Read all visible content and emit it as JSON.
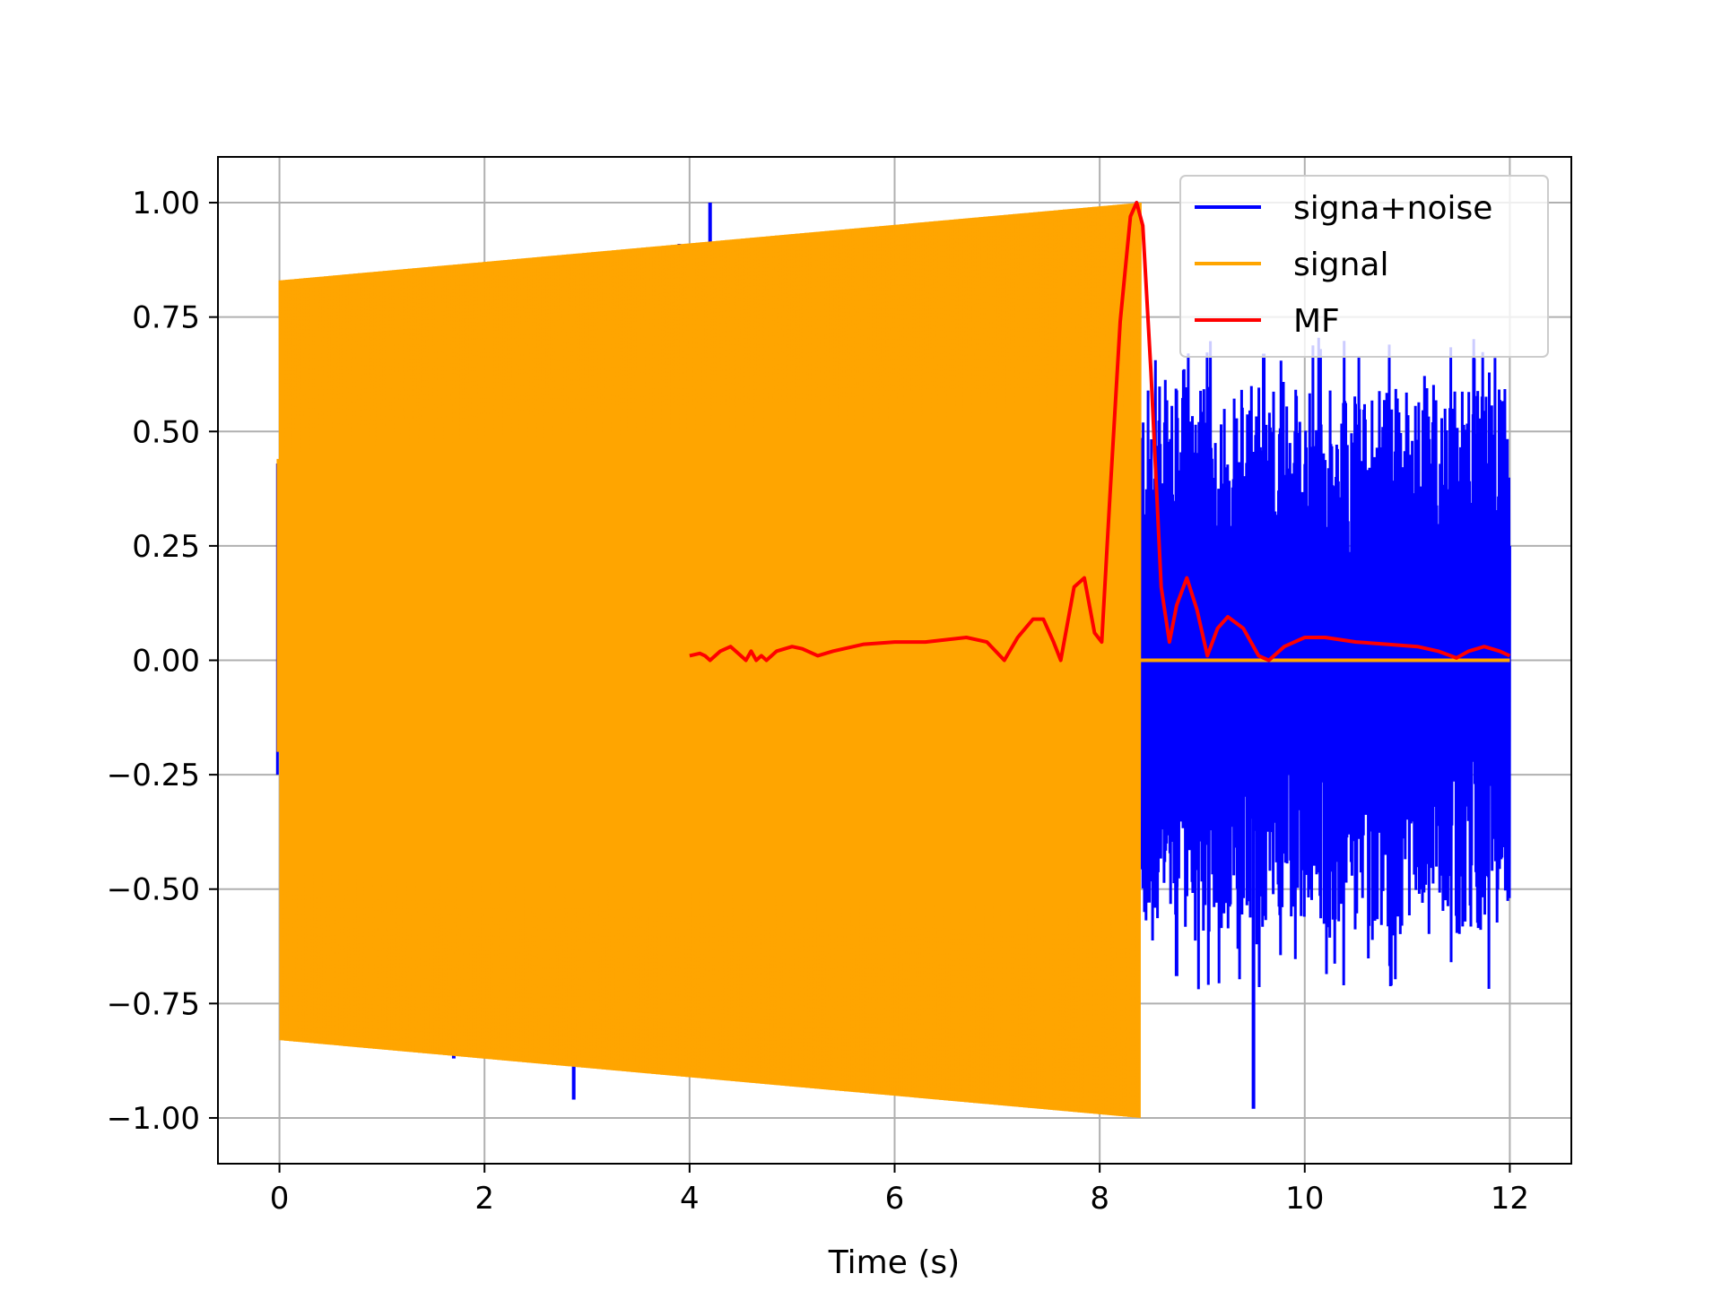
{
  "chart_data": {
    "type": "line",
    "title": "",
    "xlabel": "Time (s)",
    "ylabel": "",
    "xlim": [
      -0.6,
      12.6
    ],
    "ylim": [
      -1.1,
      1.1
    ],
    "grid": true,
    "legend_position": "top-right",
    "x_ticks": [
      0,
      2,
      4,
      6,
      8,
      10,
      12
    ],
    "x_tick_labels": [
      "0",
      "2",
      "4",
      "6",
      "8",
      "10",
      "12"
    ],
    "y_ticks": [
      1.0,
      0.75,
      0.5,
      0.25,
      0.0,
      -0.25,
      -0.5,
      -0.75,
      -1.0
    ],
    "y_tick_labels": [
      "1.00",
      "0.75",
      "0.50",
      "0.25",
      "0.00",
      "−0.25",
      "−0.50",
      "−0.75",
      "−1.00"
    ],
    "series": [
      {
        "name": "signa+noise",
        "color": "#0000ff",
        "description_x_range": [
          0,
          12
        ],
        "noise_region": [
          8.4,
          12
        ],
        "noise_band": [
          -0.6,
          0.6
        ],
        "spikes": [
          {
            "x": 4.2,
            "y": 1.0
          },
          {
            "x": 3.9,
            "y": 0.91
          },
          {
            "x": 5.75,
            "y": 0.94
          },
          {
            "x": 2.87,
            "y": -0.96
          },
          {
            "x": 1.7,
            "y": -0.87
          },
          {
            "x": 1.32,
            "y": -0.85
          },
          {
            "x": 9.5,
            "y": -0.98
          },
          {
            "x": 8.75,
            "y": -0.69
          },
          {
            "x": 9.6,
            "y": 0.67
          },
          {
            "x": 10.15,
            "y": 0.68
          },
          {
            "x": 11.65,
            "y": 0.66
          }
        ]
      },
      {
        "name": "signal",
        "color": "#ffa500",
        "envelope_start": [
          0,
          0.83
        ],
        "envelope_end": [
          8.4,
          1.0
        ],
        "zero_after": 8.4,
        "x_end": 12
      },
      {
        "name": "MF",
        "color": "#ff0000",
        "x": [
          4.0,
          4.1,
          4.15,
          4.2,
          4.3,
          4.4,
          4.5,
          4.55,
          4.6,
          4.65,
          4.7,
          4.75,
          4.85,
          5.0,
          5.1,
          5.25,
          5.4,
          5.7,
          6.0,
          6.3,
          6.7,
          6.9,
          7.07,
          7.2,
          7.35,
          7.45,
          7.55,
          7.62,
          7.75,
          7.85,
          7.95,
          8.02,
          8.1,
          8.2,
          8.3,
          8.36,
          8.42,
          8.5,
          8.6,
          8.68,
          8.75,
          8.85,
          8.95,
          9.05,
          9.15,
          9.25,
          9.4,
          9.55,
          9.65,
          9.8,
          10.0,
          10.2,
          10.5,
          10.8,
          11.1,
          11.3,
          11.48,
          11.6,
          11.75,
          11.9,
          12.0
        ],
        "y": [
          0.01,
          0.015,
          0.01,
          0.0,
          0.02,
          0.03,
          0.01,
          0.0,
          0.02,
          0.0,
          0.01,
          0.0,
          0.02,
          0.03,
          0.025,
          0.01,
          0.02,
          0.035,
          0.04,
          0.04,
          0.05,
          0.04,
          0.0,
          0.05,
          0.09,
          0.09,
          0.04,
          0.0,
          0.16,
          0.18,
          0.06,
          0.04,
          0.36,
          0.74,
          0.97,
          1.0,
          0.95,
          0.63,
          0.16,
          0.04,
          0.12,
          0.18,
          0.11,
          0.01,
          0.07,
          0.095,
          0.07,
          0.01,
          0.0,
          0.03,
          0.05,
          0.05,
          0.04,
          0.035,
          0.03,
          0.02,
          0.005,
          0.02,
          0.03,
          0.02,
          0.01
        ]
      }
    ]
  }
}
